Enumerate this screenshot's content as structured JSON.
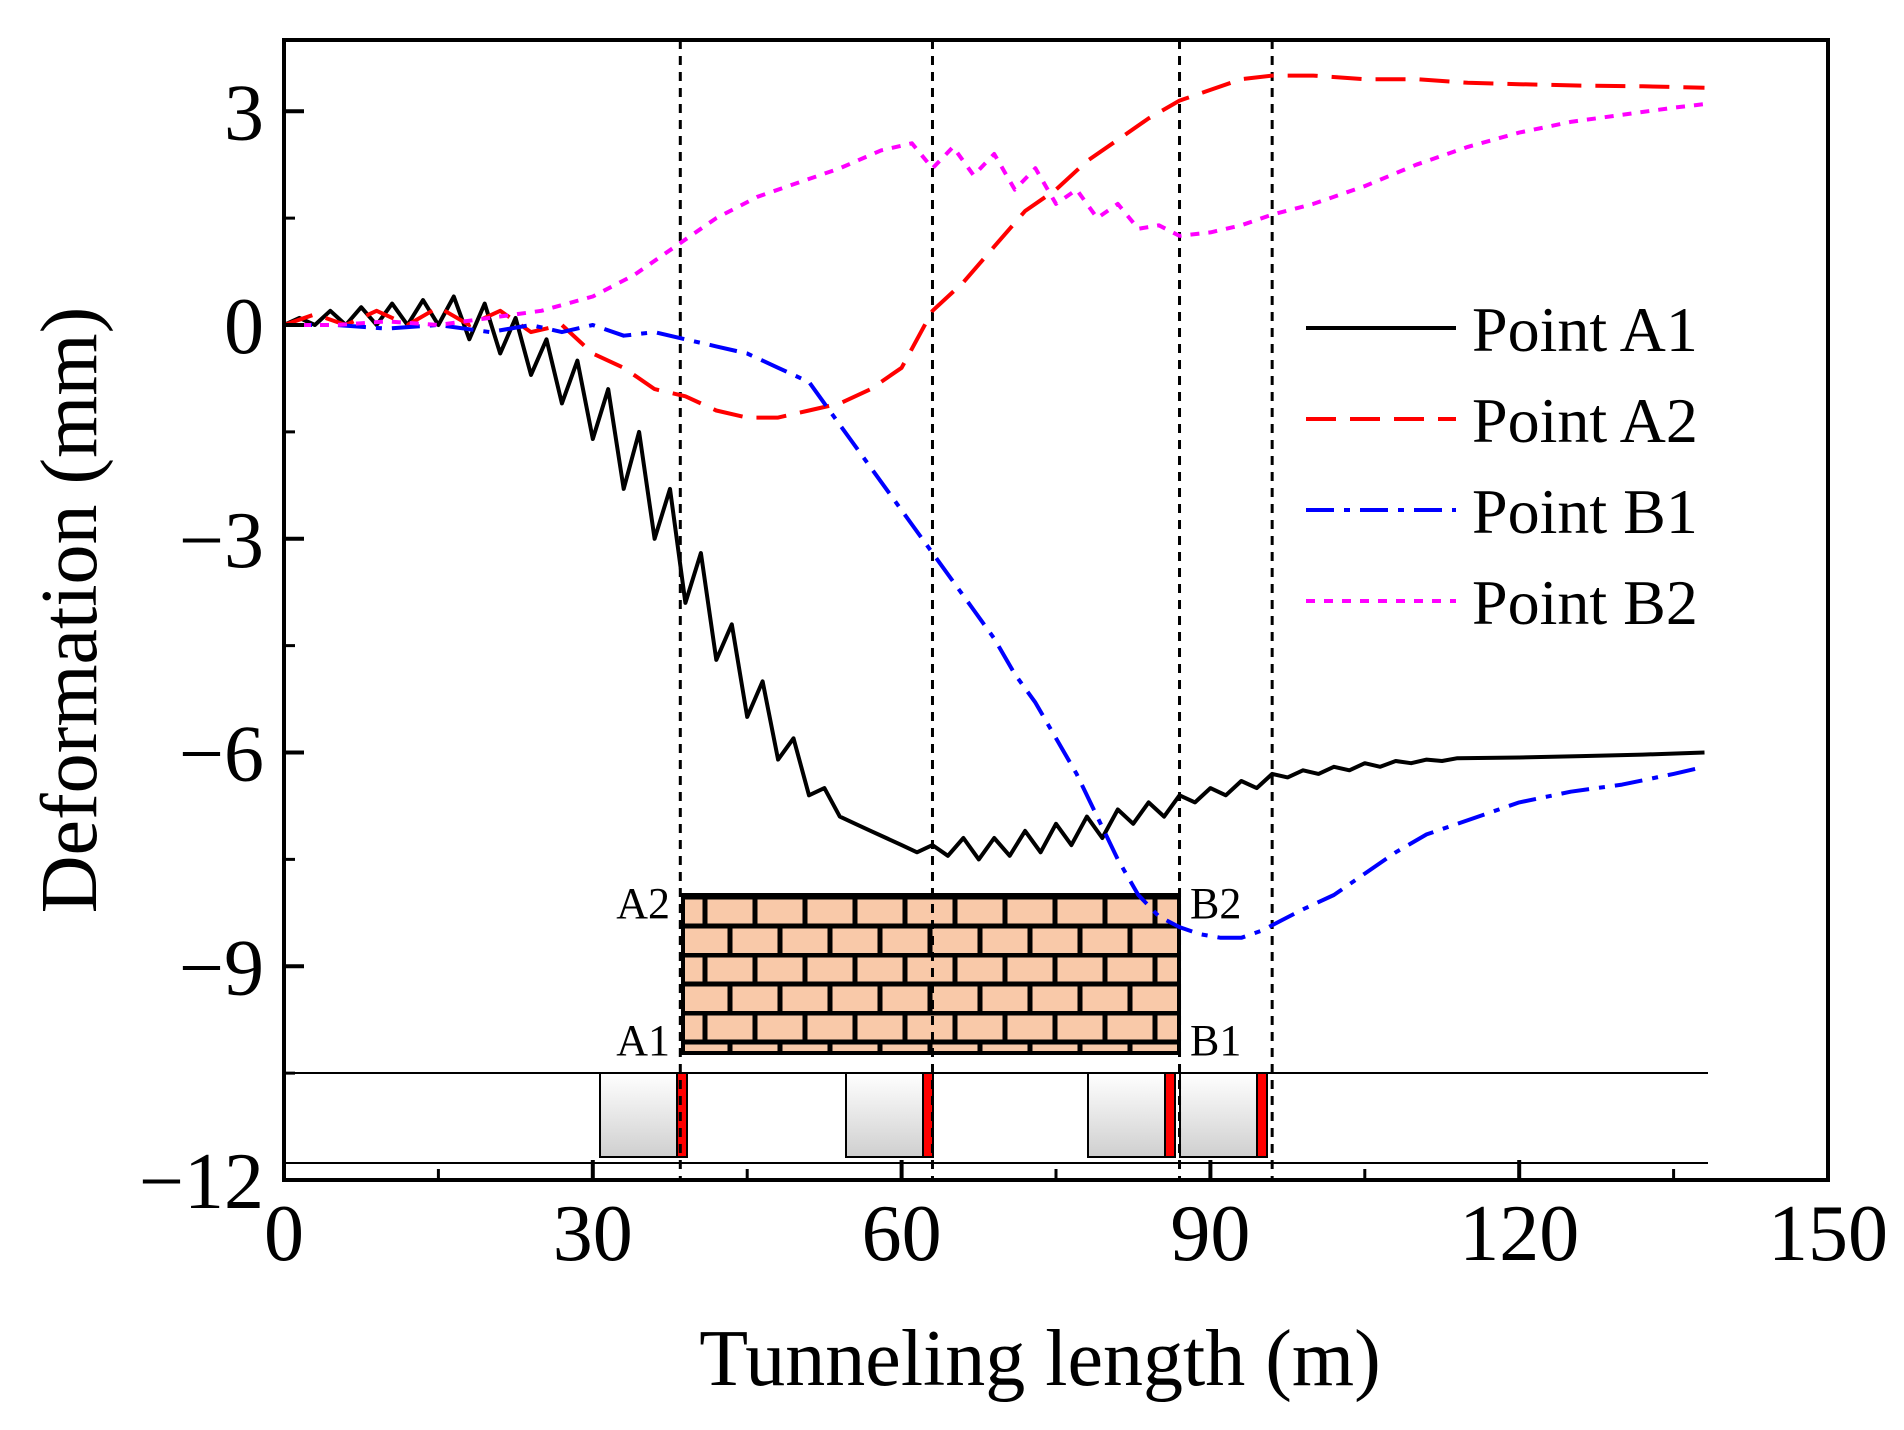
{
  "chart_data": {
    "type": "line",
    "title": "",
    "xlabel": "Tunneling length (m)",
    "ylabel": "Deformation (mm)",
    "xlim": [
      0,
      150
    ],
    "ylim": [
      -12,
      4
    ],
    "xticks": [
      0,
      30,
      60,
      90,
      120,
      150
    ],
    "yticks": [
      3,
      0,
      -3,
      -6,
      -9,
      -12
    ],
    "xtick_labels": [
      "0",
      "30",
      "60",
      "90",
      "120",
      "150"
    ],
    "ytick_labels": [
      "3",
      "0",
      "−3",
      "−6",
      "−9",
      "−12"
    ],
    "grid": false,
    "legend_position": "middle-right",
    "reference_lines_x": [
      38.5,
      63,
      87,
      96
    ],
    "series": [
      {
        "name": "Point A1",
        "color": "#000000",
        "dash": "solid",
        "x": [
          0,
          1.5,
          3,
          4.5,
          6,
          7.5,
          9,
          10.5,
          12,
          13.5,
          15,
          16.5,
          18,
          19.5,
          21,
          22.5,
          24,
          25.5,
          27,
          28.5,
          30,
          31.5,
          33,
          34.5,
          36,
          37.5,
          39,
          40.5,
          42,
          43.5,
          45,
          46.5,
          48,
          49.5,
          51,
          52.5,
          54,
          55.5,
          57,
          58.5,
          60,
          61.5,
          63,
          64.5,
          66,
          67.5,
          69,
          70.5,
          72,
          73.5,
          75,
          76.5,
          78,
          79.5,
          81,
          82.5,
          84,
          85.5,
          87,
          88.5,
          90,
          91.5,
          93,
          94.5,
          96,
          97.5,
          99,
          100.5,
          102,
          103.5,
          105,
          106.5,
          108,
          109.5,
          111,
          112.5,
          114,
          120,
          126,
          132,
          138
        ],
        "y": [
          0,
          0.1,
          0,
          0.2,
          0,
          0.25,
          0,
          0.3,
          0,
          0.35,
          0,
          0.4,
          -0.2,
          0.3,
          -0.4,
          0.1,
          -0.7,
          -0.2,
          -1.1,
          -0.5,
          -1.6,
          -0.9,
          -2.3,
          -1.5,
          -3.0,
          -2.3,
          -3.9,
          -3.2,
          -4.7,
          -4.2,
          -5.5,
          -5.0,
          -6.1,
          -5.8,
          -6.6,
          -6.5,
          -6.9,
          -7.0,
          -7.1,
          -7.2,
          -7.3,
          -7.4,
          -7.3,
          -7.45,
          -7.2,
          -7.5,
          -7.2,
          -7.45,
          -7.1,
          -7.4,
          -7.0,
          -7.3,
          -6.9,
          -7.2,
          -6.8,
          -7.0,
          -6.7,
          -6.9,
          -6.6,
          -6.7,
          -6.5,
          -6.6,
          -6.4,
          -6.5,
          -6.3,
          -6.35,
          -6.25,
          -6.3,
          -6.2,
          -6.25,
          -6.15,
          -6.2,
          -6.12,
          -6.15,
          -6.1,
          -6.12,
          -6.08,
          -6.07,
          -6.05,
          -6.03,
          -6.0
        ]
      },
      {
        "name": "Point A2",
        "color": "#ff0000",
        "dash": "dashed",
        "x": [
          0,
          3,
          6,
          9,
          12,
          15,
          18,
          21,
          24,
          27,
          30,
          33,
          36,
          39,
          42,
          45,
          48,
          51,
          54,
          57,
          60,
          63,
          66,
          69,
          72,
          75,
          78,
          81,
          84,
          87,
          90,
          93,
          96,
          100,
          105,
          110,
          115,
          120,
          126,
          132,
          138
        ],
        "y": [
          0,
          0.15,
          0,
          0.2,
          0,
          0.25,
          0,
          0.2,
          -0.1,
          0.0,
          -0.4,
          -0.6,
          -0.9,
          -1.0,
          -1.2,
          -1.3,
          -1.3,
          -1.2,
          -1.1,
          -0.9,
          -0.6,
          0.2,
          0.6,
          1.1,
          1.6,
          1.9,
          2.3,
          2.6,
          2.9,
          3.15,
          3.3,
          3.45,
          3.5,
          3.5,
          3.45,
          3.45,
          3.4,
          3.38,
          3.36,
          3.35,
          3.33
        ]
      },
      {
        "name": "Point B1",
        "color": "#0000ff",
        "dash": "dashdot",
        "x": [
          0,
          5,
          10,
          15,
          20,
          24,
          27,
          30,
          33,
          36,
          39,
          42,
          45,
          48,
          51,
          53,
          55,
          57,
          59,
          61,
          63,
          65,
          67,
          69,
          71,
          73,
          75,
          77,
          79,
          81,
          83,
          85,
          87,
          89,
          91,
          93,
          95,
          97,
          99,
          102,
          105,
          108,
          111,
          114,
          117,
          120,
          125,
          130,
          135,
          138
        ],
        "y": [
          0,
          0,
          -0.05,
          0,
          -0.1,
          0.0,
          -0.1,
          0.0,
          -0.15,
          -0.1,
          -0.2,
          -0.3,
          -0.4,
          -0.6,
          -0.8,
          -1.2,
          -1.6,
          -2.0,
          -2.4,
          -2.8,
          -3.2,
          -3.6,
          -4.0,
          -4.4,
          -4.9,
          -5.3,
          -5.8,
          -6.3,
          -6.9,
          -7.5,
          -8.0,
          -8.3,
          -8.45,
          -8.55,
          -8.6,
          -8.6,
          -8.5,
          -8.35,
          -8.2,
          -8.0,
          -7.7,
          -7.4,
          -7.15,
          -7.0,
          -6.85,
          -6.7,
          -6.55,
          -6.45,
          -6.3,
          -6.2
        ]
      },
      {
        "name": "Point B2",
        "color": "#ff00ff",
        "dash": "dotted",
        "x": [
          0,
          5,
          10,
          15,
          20,
          25,
          30,
          34,
          38,
          42,
          46,
          50,
          54,
          58,
          61,
          63,
          65,
          67,
          69,
          71,
          73,
          75,
          77,
          79,
          81,
          83,
          85,
          87,
          90,
          93,
          96,
          100,
          105,
          110,
          115,
          120,
          125,
          130,
          135,
          138
        ],
        "y": [
          0,
          0,
          0.05,
          0.0,
          0.1,
          0.2,
          0.4,
          0.7,
          1.1,
          1.5,
          1.8,
          2.0,
          2.2,
          2.45,
          2.55,
          2.2,
          2.5,
          2.1,
          2.4,
          1.9,
          2.2,
          1.7,
          1.9,
          1.5,
          1.7,
          1.35,
          1.4,
          1.25,
          1.3,
          1.4,
          1.55,
          1.7,
          1.95,
          2.25,
          2.5,
          2.7,
          2.85,
          2.95,
          3.05,
          3.1
        ]
      }
    ],
    "inset": {
      "point_labels": [
        "A2",
        "B2",
        "A1",
        "B1"
      ],
      "brick_fill": "#f9c9a9"
    }
  }
}
